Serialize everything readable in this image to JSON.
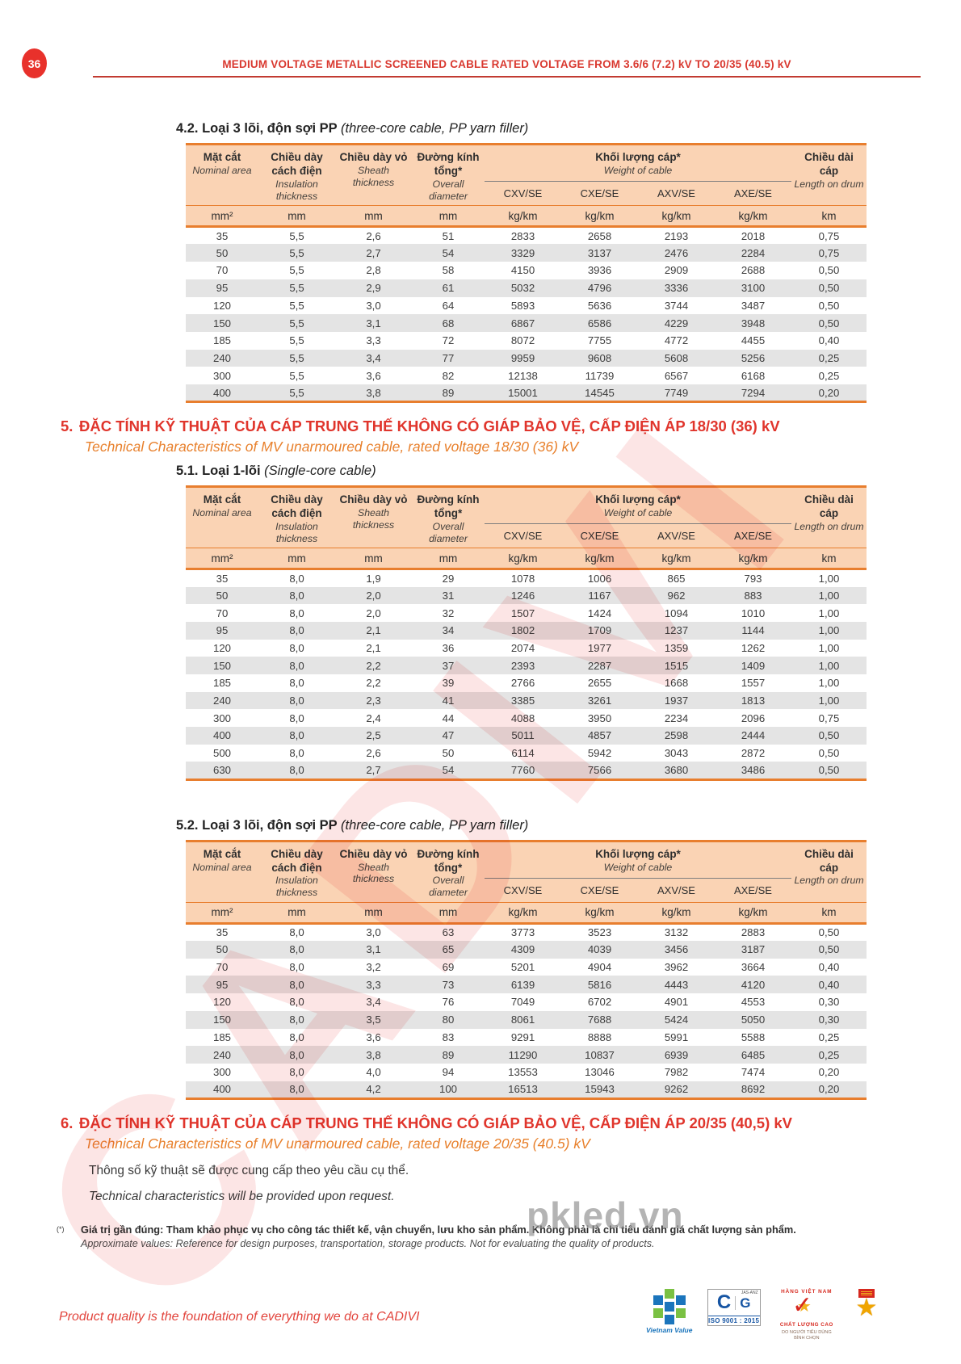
{
  "page": {
    "number": "36",
    "header_title": "MEDIUM VOLTAGE METALLIC SCREENED CABLE RATED VOLTAGE FROM 3.6/6 (7.2) kV TO 20/35 (40.5) kV"
  },
  "sections": {
    "s42": {
      "title_vn": "4.2. Loại 3 lõi, độn sợi PP",
      "title_en": "(three-core cable, PP yarn filler)"
    },
    "s5": {
      "number": "5.",
      "title": "ĐẶC TÍNH KỸ THUẬT CỦA CÁP TRUNG THẾ KHÔNG CÓ GIÁP BẢO VỆ, CẤP ĐIỆN ÁP 18/30 (36) kV",
      "subtitle": "Technical Characteristics of MV unarmoured cable, rated voltage 18/30 (36) kV"
    },
    "s51": {
      "title_vn": "5.1. Loại 1-lõi",
      "title_en": "(Single-core cable)"
    },
    "s52": {
      "title_vn": "5.2. Loại 3 lõi, độn sợi PP",
      "title_en": "(three-core cable, PP yarn filler)"
    },
    "s6": {
      "number": "6.",
      "title": "ĐẶC TÍNH KỸ THUẬT CỦA CÁP TRUNG THẾ KHÔNG CÓ GIÁP BẢO VỆ, CẤP ĐIỆN ÁP 20/35 (40,5) kV",
      "subtitle": "Technical Characteristics of MV unarmoured cable, rated voltage 20/35 (40.5) kV",
      "body_vn": "Thông số kỹ thuật sẽ được cung cấp theo yêu cầu cụ thể.",
      "body_en": "Technical characteristics will be provided upon request."
    }
  },
  "table_columns": {
    "area_vn": "Mặt cắt",
    "area_en": "Nominal area",
    "ins_vn": "Chiều dày cách điện",
    "ins_en": "Insulation thickness",
    "sheath_vn": "Chiều dày vỏ",
    "sheath_en": "Sheath thickness",
    "dia_vn": "Đường kính tổng*",
    "dia_en": "Overall diameter",
    "weight_vn": "Khối lượng cáp*",
    "weight_en": "Weight of cable",
    "sub": [
      "CXV/SE",
      "CXE/SE",
      "AXV/SE",
      "AXE/SE"
    ],
    "length_vn": "Chiều dài cáp",
    "length_en": "Length on drum",
    "units": [
      "mm²",
      "mm",
      "mm",
      "mm",
      "kg/km",
      "kg/km",
      "kg/km",
      "kg/km",
      "km"
    ]
  },
  "tables": {
    "t42": {
      "rows": [
        [
          "35",
          "5,5",
          "2,6",
          "51",
          "2833",
          "2658",
          "2193",
          "2018",
          "0,75"
        ],
        [
          "50",
          "5,5",
          "2,7",
          "54",
          "3329",
          "3137",
          "2476",
          "2284",
          "0,75"
        ],
        [
          "70",
          "5,5",
          "2,8",
          "58",
          "4150",
          "3936",
          "2909",
          "2688",
          "0,50"
        ],
        [
          "95",
          "5,5",
          "2,9",
          "61",
          "5032",
          "4796",
          "3336",
          "3100",
          "0,50"
        ],
        [
          "120",
          "5,5",
          "3,0",
          "64",
          "5893",
          "5636",
          "3744",
          "3487",
          "0,50"
        ],
        [
          "150",
          "5,5",
          "3,1",
          "68",
          "6867",
          "6586",
          "4229",
          "3948",
          "0,50"
        ],
        [
          "185",
          "5,5",
          "3,3",
          "72",
          "8072",
          "7755",
          "4772",
          "4455",
          "0,40"
        ],
        [
          "240",
          "5,5",
          "3,4",
          "77",
          "9959",
          "9608",
          "5608",
          "5256",
          "0,25"
        ],
        [
          "300",
          "5,5",
          "3,6",
          "82",
          "12138",
          "11739",
          "6567",
          "6168",
          "0,25"
        ],
        [
          "400",
          "5,5",
          "3,8",
          "89",
          "15001",
          "14545",
          "7749",
          "7294",
          "0,20"
        ]
      ]
    },
    "t51": {
      "rows": [
        [
          "35",
          "8,0",
          "1,9",
          "29",
          "1078",
          "1006",
          "865",
          "793",
          "1,00"
        ],
        [
          "50",
          "8,0",
          "2,0",
          "31",
          "1246",
          "1167",
          "962",
          "883",
          "1,00"
        ],
        [
          "70",
          "8,0",
          "2,0",
          "32",
          "1507",
          "1424",
          "1094",
          "1010",
          "1,00"
        ],
        [
          "95",
          "8,0",
          "2,1",
          "34",
          "1802",
          "1709",
          "1237",
          "1144",
          "1,00"
        ],
        [
          "120",
          "8,0",
          "2,1",
          "36",
          "2074",
          "1977",
          "1359",
          "1262",
          "1,00"
        ],
        [
          "150",
          "8,0",
          "2,2",
          "37",
          "2393",
          "2287",
          "1515",
          "1409",
          "1,00"
        ],
        [
          "185",
          "8,0",
          "2,2",
          "39",
          "2766",
          "2655",
          "1668",
          "1557",
          "1,00"
        ],
        [
          "240",
          "8,0",
          "2,3",
          "41",
          "3385",
          "3261",
          "1937",
          "1813",
          "1,00"
        ],
        [
          "300",
          "8,0",
          "2,4",
          "44",
          "4088",
          "3950",
          "2234",
          "2096",
          "0,75"
        ],
        [
          "400",
          "8,0",
          "2,5",
          "47",
          "5011",
          "4857",
          "2598",
          "2444",
          "0,50"
        ],
        [
          "500",
          "8,0",
          "2,6",
          "50",
          "6114",
          "5942",
          "3043",
          "2872",
          "0,50"
        ],
        [
          "630",
          "8,0",
          "2,7",
          "54",
          "7760",
          "7566",
          "3680",
          "3486",
          "0,50"
        ]
      ]
    },
    "t52": {
      "rows": [
        [
          "35",
          "8,0",
          "3,0",
          "63",
          "3773",
          "3523",
          "3132",
          "2883",
          "0,50"
        ],
        [
          "50",
          "8,0",
          "3,1",
          "65",
          "4309",
          "4039",
          "3456",
          "3187",
          "0,50"
        ],
        [
          "70",
          "8,0",
          "3,2",
          "69",
          "5201",
          "4904",
          "3962",
          "3664",
          "0,40"
        ],
        [
          "95",
          "8,0",
          "3,3",
          "73",
          "6139",
          "5816",
          "4443",
          "4120",
          "0,40"
        ],
        [
          "120",
          "8,0",
          "3,4",
          "76",
          "7049",
          "6702",
          "4901",
          "4553",
          "0,30"
        ],
        [
          "150",
          "8,0",
          "3,5",
          "80",
          "8061",
          "7688",
          "5424",
          "5050",
          "0,30"
        ],
        [
          "185",
          "8,0",
          "3,6",
          "83",
          "9291",
          "8888",
          "5991",
          "5588",
          "0,25"
        ],
        [
          "240",
          "8,0",
          "3,8",
          "89",
          "11290",
          "10837",
          "6939",
          "6485",
          "0,25"
        ],
        [
          "300",
          "8,0",
          "4,0",
          "94",
          "13553",
          "13046",
          "7982",
          "7474",
          "0,20"
        ],
        [
          "400",
          "8,0",
          "4,2",
          "100",
          "16513",
          "15943",
          "9262",
          "8692",
          "0,20"
        ]
      ]
    }
  },
  "footnote": {
    "marker": "(*)",
    "vn": "Giá trị gần đúng: Tham khảo phục vụ cho công tác thiết kế, vận chuyển, lưu kho sản phẩm. Không phải là chỉ tiêu đánh giá chất lượng sản phẩm.",
    "en": "Approximate values: Reference for design purposes, transportation, storage products. Not for evaluating the quality of products."
  },
  "footer": {
    "slogan": "Product quality is the foundation of everything we do at CADIVI",
    "vietnam_value": "Vietnam Value",
    "iso_label": "ISO 9001 : 2015",
    "jas_label": "JAS-ANZ",
    "hvnclc_top": "HÀNG VIỆT NAM",
    "hvnclc_bottom": "CHẤT LƯỢNG CAO",
    "hvnclc_caption_1": "DO NGƯỜI TIÊU DÙNG",
    "hvnclc_caption_2": "BÌNH CHỌN"
  },
  "watermarks": {
    "brand": "CADIVI",
    "site": "pkled.vn"
  },
  "colors": {
    "brand_red": "#e0352c",
    "accent_orange": "#e87e2e",
    "table_header_bg": "#fad3b4",
    "row_alt": "#e4e4e4"
  }
}
